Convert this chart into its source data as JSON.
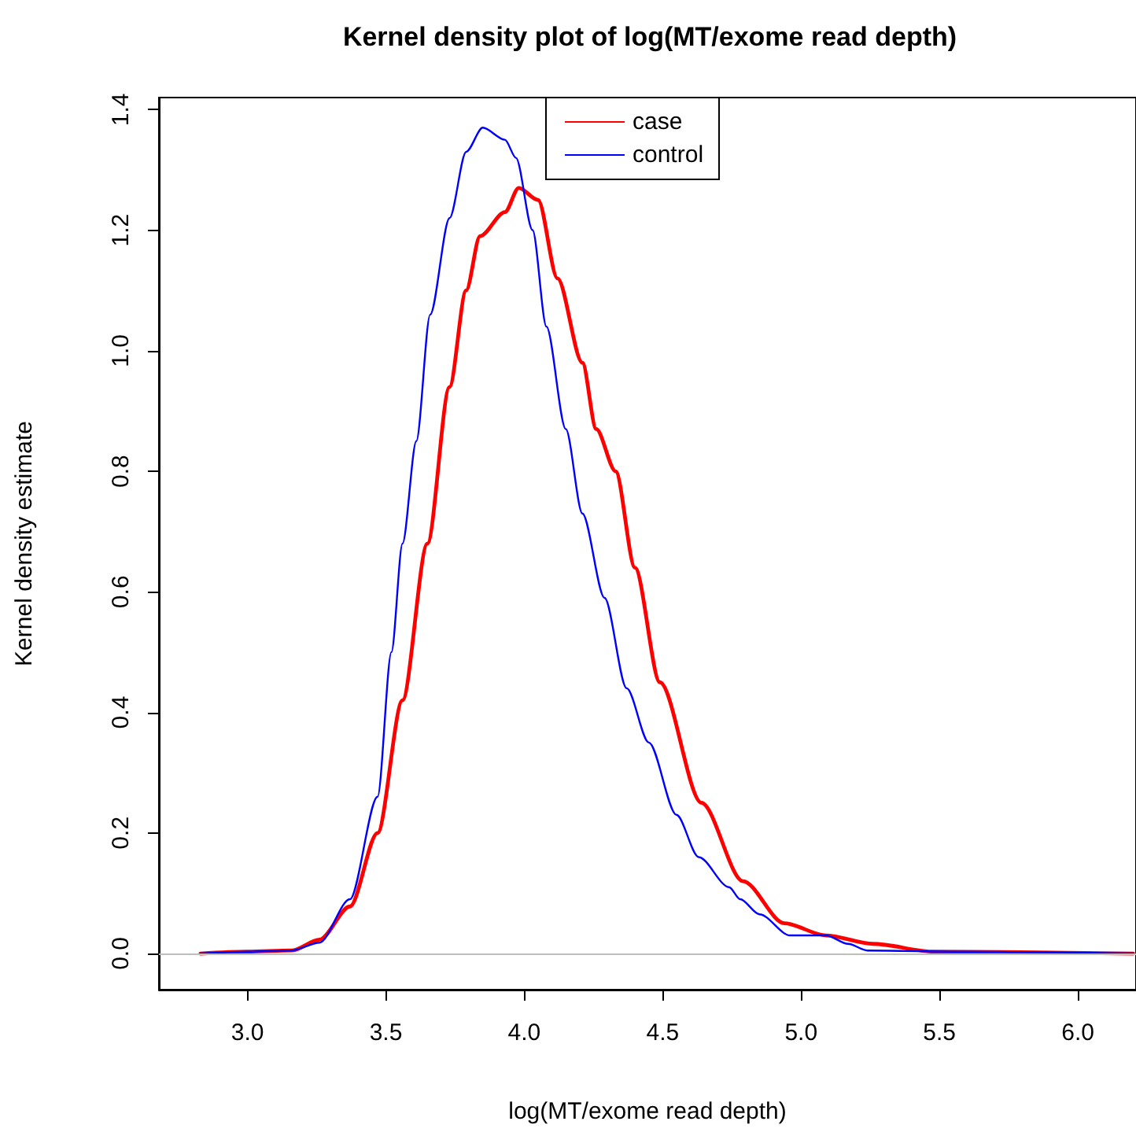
{
  "chart_data": {
    "type": "line",
    "title": "Kernel density plot of log(MT/exome read depth)",
    "xlabel": "log(MT/exome read depth)",
    "ylabel": "Kernel density estimate",
    "xlim": [
      2.68,
      6.21
    ],
    "ylim": [
      -0.06,
      1.42
    ],
    "xticks": [
      {
        "value": 3,
        "label": "3.0"
      },
      {
        "value": 3.5,
        "label": "3.5"
      },
      {
        "value": 4,
        "label": "4.0"
      },
      {
        "value": 4.5,
        "label": "4.5"
      },
      {
        "value": 5,
        "label": "5.0"
      },
      {
        "value": 5.5,
        "label": "5.5"
      },
      {
        "value": 6,
        "label": "6.0"
      }
    ],
    "yticks": [
      {
        "value": 0,
        "label": "0.0"
      },
      {
        "value": 0.2,
        "label": "0.2"
      },
      {
        "value": 0.4,
        "label": "0.4"
      },
      {
        "value": 0.6,
        "label": "0.6"
      },
      {
        "value": 0.8,
        "label": "0.8"
      },
      {
        "value": 1,
        "label": "1.0"
      },
      {
        "value": 1.2,
        "label": "1.2"
      },
      {
        "value": 1.4,
        "label": "1.4"
      }
    ],
    "grid": false,
    "legend": "top",
    "marker": "none",
    "line_style": "solid",
    "ref_lines": [
      {
        "axis": "y",
        "value": 0,
        "label": null,
        "color": "#bebebe"
      }
    ],
    "series": [
      {
        "name": "case",
        "color": "#ff0000",
        "x": [
          2.83,
          3.0,
          3.16,
          3.26,
          3.37,
          3.47,
          3.56,
          3.65,
          3.73,
          3.79,
          3.84,
          3.93,
          3.98,
          4.05,
          4.12,
          4.21,
          4.26,
          4.33,
          4.4,
          4.49,
          4.64,
          4.79,
          4.94,
          5.09,
          5.26,
          5.48,
          6.2
        ],
        "values": [
          0,
          0.003,
          0.005,
          0.023,
          0.078,
          0.2,
          0.42,
          0.68,
          0.94,
          1.1,
          1.19,
          1.23,
          1.27,
          1.25,
          1.12,
          0.98,
          0.87,
          0.8,
          0.64,
          0.45,
          0.25,
          0.12,
          0.05,
          0.03,
          0.016,
          0.003,
          0
        ]
      },
      {
        "name": "control",
        "color": "#0000ff",
        "x": [
          2.83,
          3.0,
          3.16,
          3.26,
          3.37,
          3.47,
          3.52,
          3.56,
          3.61,
          3.66,
          3.73,
          3.79,
          3.85,
          3.93,
          3.97,
          4.03,
          4.08,
          4.15,
          4.21,
          4.29,
          4.37,
          4.45,
          4.55,
          4.63,
          4.74,
          4.78,
          4.85,
          4.96,
          5.09,
          5.17,
          5.24,
          5.6,
          6.2
        ],
        "values": [
          0,
          0.003,
          0.005,
          0.018,
          0.09,
          0.26,
          0.5,
          0.68,
          0.85,
          1.06,
          1.22,
          1.33,
          1.37,
          1.35,
          1.32,
          1.2,
          1.04,
          0.87,
          0.73,
          0.59,
          0.44,
          0.35,
          0.23,
          0.16,
          0.11,
          0.09,
          0.065,
          0.03,
          0.03,
          0.016,
          0.005,
          0.003,
          0
        ]
      }
    ]
  }
}
